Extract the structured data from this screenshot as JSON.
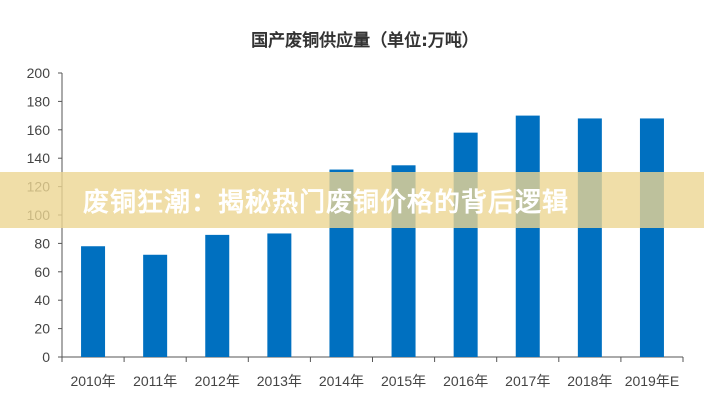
{
  "chart_data": {
    "type": "bar",
    "title": "国产废铜供应量（单位:万吨）",
    "categories": [
      "2010年",
      "2011年",
      "2012年",
      "2013年",
      "2014年",
      "2015年",
      "2016年",
      "2017年",
      "2018年",
      "2019年E"
    ],
    "values": [
      78,
      72,
      86,
      87,
      132,
      135,
      158,
      170,
      168,
      168
    ],
    "xlabel": "",
    "ylabel": "",
    "ylim": [
      0,
      200
    ],
    "yticks": [
      0,
      20,
      40,
      60,
      80,
      100,
      120,
      140,
      160,
      180,
      200
    ],
    "grid": false,
    "bar_color": "#0070c0"
  },
  "banner": {
    "text": "废铜狂潮：揭秘热门废铜价格的背后逻辑",
    "color": "#ecd692"
  }
}
